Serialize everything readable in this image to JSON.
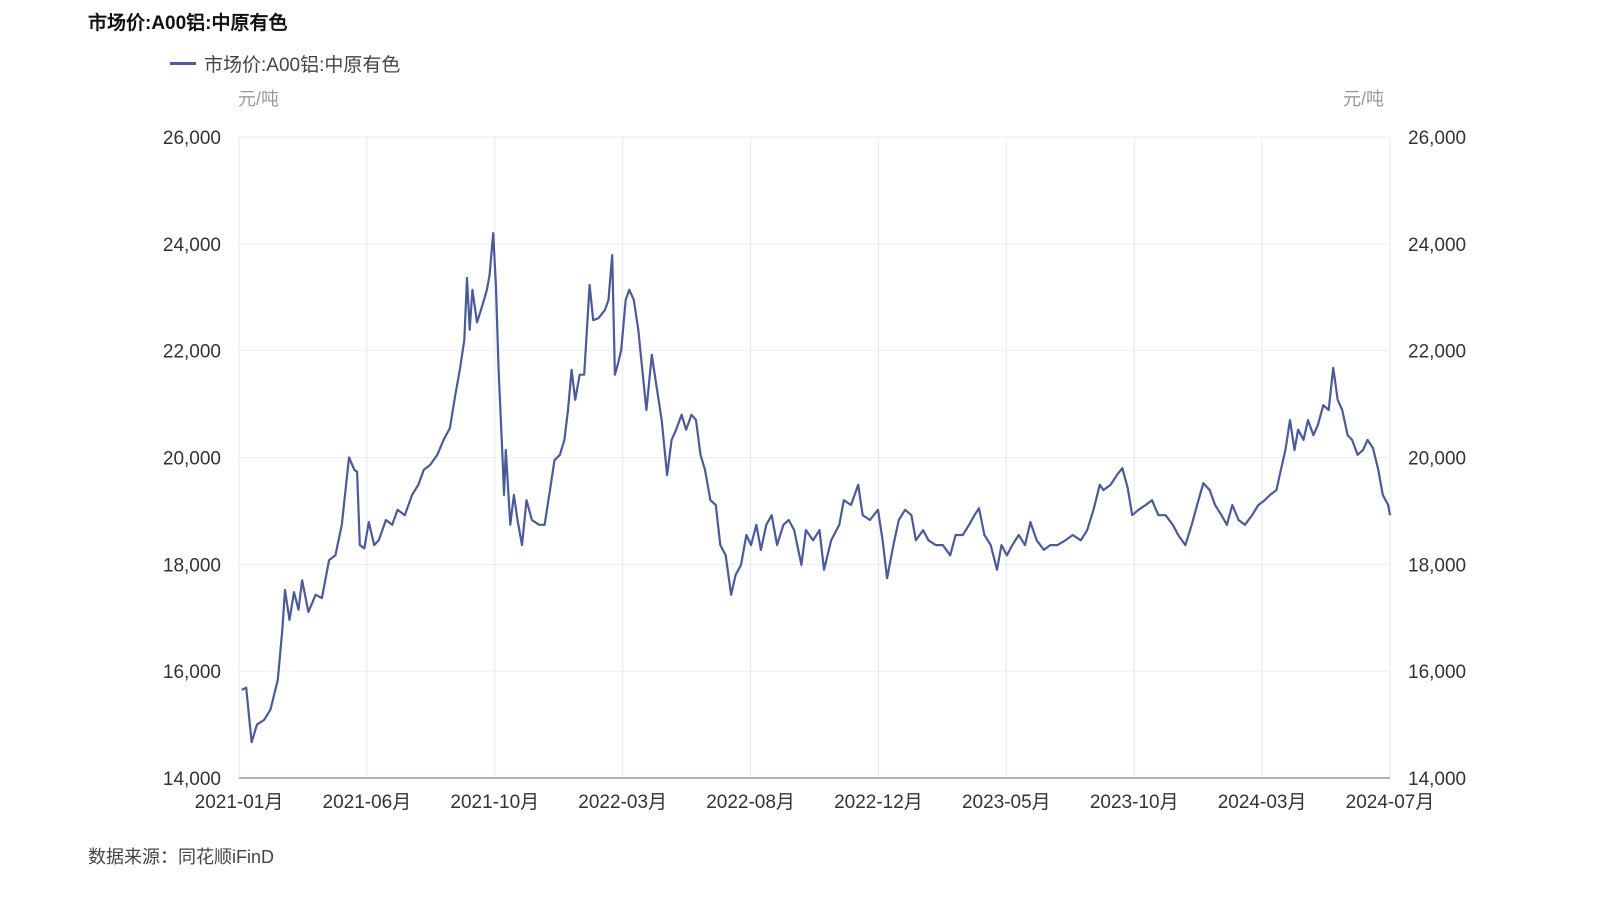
{
  "chart_data": {
    "type": "line",
    "title": "市场价:A00铝:中原有色",
    "legend": "top-left",
    "ylabel_left": "元/吨",
    "ylabel_right": "元/吨",
    "ylim": [
      14000,
      26000
    ],
    "yticks": [
      14000,
      16000,
      18000,
      20000,
      22000,
      24000,
      26000
    ],
    "ytick_labels": [
      "14,000",
      "16,000",
      "18,000",
      "20,000",
      "22,000",
      "24,000",
      "26,000"
    ],
    "xlim": [
      "2021-01-01",
      "2024-07-01"
    ],
    "xtick_labels": [
      "2021-01月",
      "2021-06月",
      "2021-10月",
      "2022-03月",
      "2022-08月",
      "2022-12月",
      "2023-05月",
      "2023-10月",
      "2024-03月",
      "2024-07月"
    ],
    "grid": true,
    "series": [
      {
        "name": "市场价:A00铝:中原有色",
        "color": "#4b5a98",
        "points": [
          [
            "2021-01-04",
            15650
          ],
          [
            "2021-01-09",
            15690
          ],
          [
            "2021-01-15",
            14670
          ],
          [
            "2021-01-21",
            15000
          ],
          [
            "2021-01-29",
            15090
          ],
          [
            "2021-02-05",
            15280
          ],
          [
            "2021-02-13",
            15840
          ],
          [
            "2021-02-18",
            16770
          ],
          [
            "2021-02-21",
            17520
          ],
          [
            "2021-02-26",
            16960
          ],
          [
            "2021-03-03",
            17480
          ],
          [
            "2021-03-08",
            17150
          ],
          [
            "2021-03-12",
            17700
          ],
          [
            "2021-03-19",
            17110
          ],
          [
            "2021-03-27",
            17430
          ],
          [
            "2021-04-03",
            17370
          ],
          [
            "2021-04-11",
            18080
          ],
          [
            "2021-04-18",
            18170
          ],
          [
            "2021-04-25",
            18740
          ],
          [
            "2021-05-03",
            20000
          ],
          [
            "2021-05-09",
            19770
          ],
          [
            "2021-05-12",
            19730
          ],
          [
            "2021-05-15",
            18360
          ],
          [
            "2021-05-20",
            18300
          ],
          [
            "2021-05-25",
            18790
          ],
          [
            "2021-05-31",
            18360
          ],
          [
            "2021-06-05",
            18450
          ],
          [
            "2021-06-13",
            18830
          ],
          [
            "2021-06-20",
            18740
          ],
          [
            "2021-06-26",
            19020
          ],
          [
            "2021-07-04",
            18920
          ],
          [
            "2021-07-12",
            19300
          ],
          [
            "2021-07-19",
            19490
          ],
          [
            "2021-07-25",
            19770
          ],
          [
            "2021-08-01",
            19860
          ],
          [
            "2021-08-09",
            20050
          ],
          [
            "2021-08-16",
            20330
          ],
          [
            "2021-08-23",
            20550
          ],
          [
            "2021-08-29",
            21170
          ],
          [
            "2021-09-03",
            21640
          ],
          [
            "2021-09-08",
            22200
          ],
          [
            "2021-09-11",
            23360
          ],
          [
            "2021-09-14",
            22390
          ],
          [
            "2021-09-17",
            23140
          ],
          [
            "2021-09-22",
            22530
          ],
          [
            "2021-09-28",
            22850
          ],
          [
            "2021-10-03",
            23140
          ],
          [
            "2021-10-06",
            23420
          ],
          [
            "2021-10-10",
            24200
          ],
          [
            "2021-10-13",
            23230
          ],
          [
            "2021-10-16",
            21640
          ],
          [
            "2021-10-20",
            20140
          ],
          [
            "2021-10-22",
            19300
          ],
          [
            "2021-10-24",
            20140
          ],
          [
            "2021-10-29",
            18740
          ],
          [
            "2021-11-02",
            19300
          ],
          [
            "2021-11-06",
            18830
          ],
          [
            "2021-11-11",
            18360
          ],
          [
            "2021-11-16",
            19200
          ],
          [
            "2021-11-22",
            18830
          ],
          [
            "2021-11-30",
            18740
          ],
          [
            "2021-12-06",
            18740
          ],
          [
            "2021-12-12",
            19390
          ],
          [
            "2021-12-17",
            19950
          ],
          [
            "2021-12-23",
            20050
          ],
          [
            "2021-12-28",
            20330
          ],
          [
            "2022-01-01",
            20890
          ],
          [
            "2022-01-05",
            21640
          ],
          [
            "2022-01-09",
            21080
          ],
          [
            "2022-01-14",
            21550
          ],
          [
            "2022-01-19",
            21550
          ],
          [
            "2022-01-25",
            23230
          ],
          [
            "2022-01-29",
            22570
          ],
          [
            "2022-02-04",
            22610
          ],
          [
            "2022-02-11",
            22760
          ],
          [
            "2022-02-15",
            22950
          ],
          [
            "2022-02-19",
            23790
          ],
          [
            "2022-02-22",
            21550
          ],
          [
            "2022-02-25",
            21730
          ],
          [
            "2022-03-01",
            22010
          ],
          [
            "2022-03-06",
            22950
          ],
          [
            "2022-03-10",
            23140
          ],
          [
            "2022-03-15",
            22950
          ],
          [
            "2022-03-20",
            22390
          ],
          [
            "2022-03-25",
            21550
          ],
          [
            "2022-03-29",
            20890
          ],
          [
            "2022-04-04",
            21920
          ],
          [
            "2022-04-09",
            21360
          ],
          [
            "2022-04-15",
            20700
          ],
          [
            "2022-04-21",
            19670
          ],
          [
            "2022-04-26",
            20330
          ],
          [
            "2022-05-01",
            20520
          ],
          [
            "2022-05-07",
            20800
          ],
          [
            "2022-05-12",
            20520
          ],
          [
            "2022-05-18",
            20800
          ],
          [
            "2022-05-23",
            20700
          ],
          [
            "2022-05-28",
            20050
          ],
          [
            "2022-06-02",
            19770
          ],
          [
            "2022-06-08",
            19200
          ],
          [
            "2022-06-14",
            19110
          ],
          [
            "2022-06-19",
            18360
          ],
          [
            "2022-06-25",
            18170
          ],
          [
            "2022-07-01",
            17430
          ],
          [
            "2022-07-06",
            17800
          ],
          [
            "2022-07-12",
            17990
          ],
          [
            "2022-07-18",
            18550
          ],
          [
            "2022-07-23",
            18360
          ],
          [
            "2022-07-29",
            18740
          ],
          [
            "2022-08-03",
            18270
          ],
          [
            "2022-08-09",
            18740
          ],
          [
            "2022-08-15",
            18920
          ],
          [
            "2022-08-21",
            18360
          ],
          [
            "2022-08-28",
            18740
          ],
          [
            "2022-09-03",
            18830
          ],
          [
            "2022-09-09",
            18640
          ],
          [
            "2022-09-17",
            17990
          ],
          [
            "2022-09-22",
            18640
          ],
          [
            "2022-09-30",
            18450
          ],
          [
            "2022-10-07",
            18640
          ],
          [
            "2022-10-12",
            17900
          ],
          [
            "2022-10-20",
            18450
          ],
          [
            "2022-10-29",
            18740
          ],
          [
            "2022-11-03",
            19200
          ],
          [
            "2022-11-11",
            19110
          ],
          [
            "2022-11-19",
            19490
          ],
          [
            "2022-11-24",
            18920
          ],
          [
            "2022-12-02",
            18830
          ],
          [
            "2022-12-11",
            19020
          ],
          [
            "2022-12-16",
            18450
          ],
          [
            "2022-12-21",
            17740
          ],
          [
            "2022-12-28",
            18360
          ],
          [
            "2023-01-03",
            18830
          ],
          [
            "2023-01-10",
            19020
          ],
          [
            "2023-01-17",
            18920
          ],
          [
            "2023-01-22",
            18450
          ],
          [
            "2023-01-30",
            18640
          ],
          [
            "2023-02-05",
            18450
          ],
          [
            "2023-02-13",
            18360
          ],
          [
            "2023-02-21",
            18360
          ],
          [
            "2023-03-01",
            18170
          ],
          [
            "2023-03-07",
            18550
          ],
          [
            "2023-03-15",
            18550
          ],
          [
            "2023-03-22",
            18740
          ],
          [
            "2023-03-28",
            18920
          ],
          [
            "2023-04-02",
            19050
          ],
          [
            "2023-04-08",
            18550
          ],
          [
            "2023-04-15",
            18360
          ],
          [
            "2023-04-22",
            17900
          ],
          [
            "2023-04-27",
            18360
          ],
          [
            "2023-05-03",
            18170
          ],
          [
            "2023-05-09",
            18360
          ],
          [
            "2023-05-16",
            18550
          ],
          [
            "2023-05-23",
            18360
          ],
          [
            "2023-05-29",
            18790
          ],
          [
            "2023-06-05",
            18450
          ],
          [
            "2023-06-13",
            18270
          ],
          [
            "2023-06-20",
            18360
          ],
          [
            "2023-06-28",
            18360
          ],
          [
            "2023-07-07",
            18450
          ],
          [
            "2023-07-15",
            18550
          ],
          [
            "2023-07-24",
            18450
          ],
          [
            "2023-07-31",
            18640
          ],
          [
            "2023-08-07",
            19020
          ],
          [
            "2023-08-14",
            19490
          ],
          [
            "2023-08-18",
            19390
          ],
          [
            "2023-08-26",
            19490
          ],
          [
            "2023-09-02",
            19670
          ],
          [
            "2023-09-08",
            19800
          ],
          [
            "2023-09-14",
            19430
          ],
          [
            "2023-09-19",
            18920
          ],
          [
            "2023-09-26",
            19020
          ],
          [
            "2023-10-04",
            19110
          ],
          [
            "2023-10-11",
            19200
          ],
          [
            "2023-10-18",
            18920
          ],
          [
            "2023-10-26",
            18920
          ],
          [
            "2023-11-03",
            18740
          ],
          [
            "2023-11-09",
            18550
          ],
          [
            "2023-11-17",
            18360
          ],
          [
            "2023-11-24",
            18740
          ],
          [
            "2023-11-30",
            19110
          ],
          [
            "2023-12-07",
            19520
          ],
          [
            "2023-12-14",
            19390
          ],
          [
            "2023-12-20",
            19110
          ],
          [
            "2023-12-27",
            18920
          ],
          [
            "2024-01-02",
            18740
          ],
          [
            "2024-01-08",
            19110
          ],
          [
            "2024-01-15",
            18830
          ],
          [
            "2024-01-22",
            18740
          ],
          [
            "2024-01-30",
            18920
          ],
          [
            "2024-02-06",
            19110
          ],
          [
            "2024-02-13",
            19200
          ],
          [
            "2024-02-19",
            19300
          ],
          [
            "2024-02-26",
            19390
          ],
          [
            "2024-03-02",
            19770
          ],
          [
            "2024-03-07",
            20140
          ],
          [
            "2024-03-12",
            20700
          ],
          [
            "2024-03-17",
            20140
          ],
          [
            "2024-03-21",
            20520
          ],
          [
            "2024-03-27",
            20330
          ],
          [
            "2024-04-01",
            20700
          ],
          [
            "2024-04-07",
            20420
          ],
          [
            "2024-04-12",
            20610
          ],
          [
            "2024-04-18",
            20980
          ],
          [
            "2024-04-24",
            20890
          ],
          [
            "2024-04-29",
            21680
          ],
          [
            "2024-05-04",
            21080
          ],
          [
            "2024-05-09",
            20890
          ],
          [
            "2024-05-15",
            20420
          ],
          [
            "2024-05-20",
            20330
          ],
          [
            "2024-05-26",
            20050
          ],
          [
            "2024-06-01",
            20140
          ],
          [
            "2024-06-06",
            20330
          ],
          [
            "2024-06-12",
            20180
          ],
          [
            "2024-06-18",
            19770
          ],
          [
            "2024-06-23",
            19300
          ],
          [
            "2024-06-29",
            19110
          ],
          [
            "2024-07-01",
            18920
          ]
        ]
      }
    ],
    "source": "数据来源：同花顺iFinD"
  }
}
